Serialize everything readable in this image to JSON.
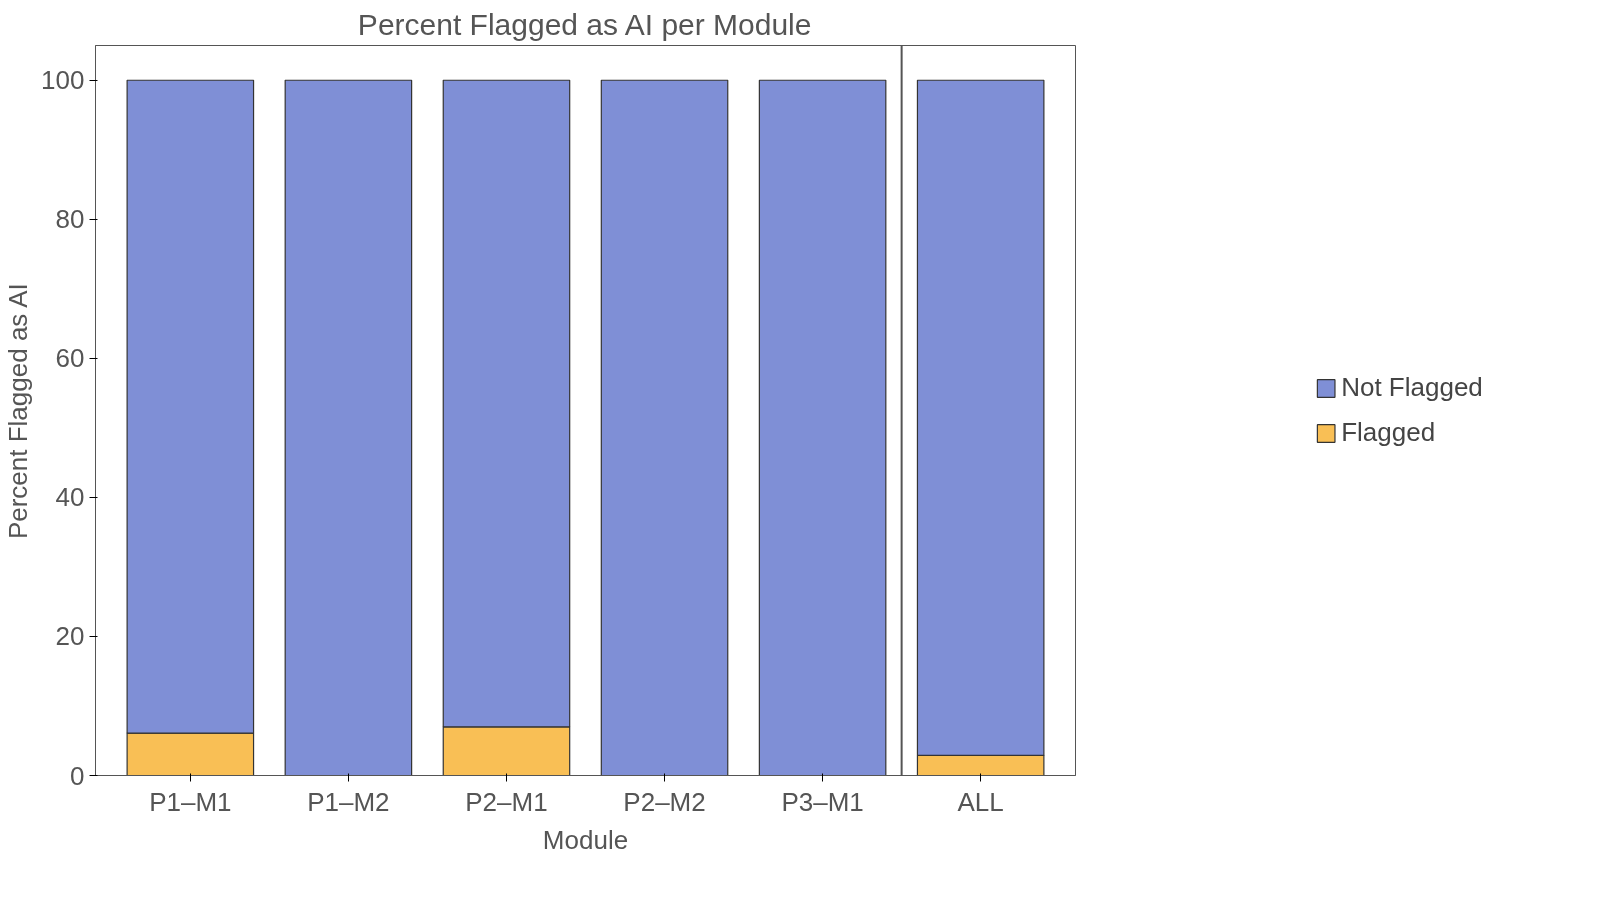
{
  "chart_data": {
    "type": "bar",
    "title": "Percent Flagged as AI per Module",
    "xlabel": "Module",
    "ylabel": "Percent Flagged as AI",
    "categories": [
      "P1–M1",
      "P1–M2",
      "P2–M1",
      "P2–M2",
      "P3–M1",
      "ALL"
    ],
    "stacked": true,
    "series": [
      {
        "name": "Flagged",
        "color": "#f9bf55",
        "values": [
          6.1,
          0,
          7.0,
          0,
          0,
          2.9
        ]
      },
      {
        "name": "Not Flagged",
        "color": "#7f8fd6",
        "values": [
          93.9,
          100,
          93.0,
          100,
          100,
          97.1
        ]
      }
    ],
    "ylim": [
      0,
      105
    ],
    "yticks": [
      0,
      20,
      40,
      60,
      80,
      100
    ],
    "grid": false,
    "legend": "right"
  }
}
